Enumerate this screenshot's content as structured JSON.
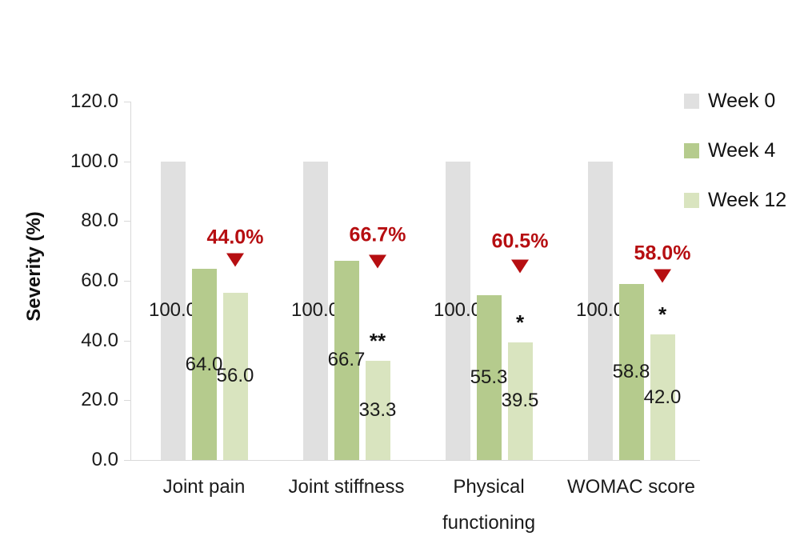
{
  "chart_data": {
    "type": "bar",
    "title": "",
    "xlabel": "",
    "ylabel": "Severity (%)",
    "ylim": [
      0,
      120
    ],
    "yticks": [
      120,
      100,
      80,
      60,
      40,
      20,
      0
    ],
    "grid": false,
    "legend_position": "right",
    "categories": [
      "Joint pain",
      "Joint stiffness",
      "Physical functioning",
      "WOMAC score"
    ],
    "series": [
      {
        "name": "Week 0",
        "color": "#e0e0e0",
        "values": [
          100.0,
          100.0,
          100.0,
          100.0
        ]
      },
      {
        "name": "Week 4",
        "color": "#b5cb8d",
        "values": [
          64.0,
          66.7,
          55.3,
          58.8
        ]
      },
      {
        "name": "Week 12",
        "color": "#d9e4bf",
        "values": [
          56.0,
          33.3,
          39.5,
          42.0
        ]
      }
    ],
    "annotations": {
      "reduction_color": "#b60e11",
      "reductions": [
        {
          "category": "Joint pain",
          "label": "44.0%"
        },
        {
          "category": "Joint stiffness",
          "label": "66.7%"
        },
        {
          "category": "Physical functioning",
          "label": "60.5%"
        },
        {
          "category": "WOMAC score",
          "label": "58.0%"
        }
      ],
      "significance_markers": [
        "",
        "**",
        "*",
        "*"
      ]
    },
    "colors": {
      "axis_line": "#d9d9d9",
      "text": "#1a1a1a"
    }
  }
}
